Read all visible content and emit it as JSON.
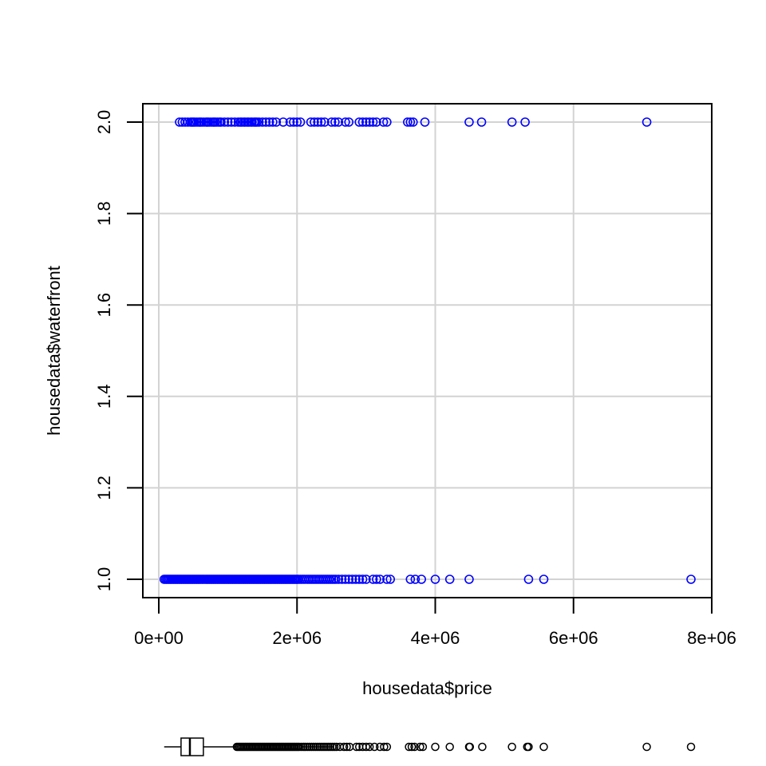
{
  "chart_data": {
    "type": "scatter",
    "title": "",
    "xlabel": "housedata$price",
    "ylabel": "housedata$waterfront",
    "xlim": [
      0,
      8000000
    ],
    "ylim": [
      1.0,
      2.0
    ],
    "grid": true,
    "x_ticks": [
      0,
      2000000,
      4000000,
      6000000,
      8000000
    ],
    "x_tick_labels": [
      "0e+00",
      "2e+06",
      "4e+06",
      "6e+06",
      "8e+06"
    ],
    "y_ticks": [
      1.0,
      1.2,
      1.4,
      1.6,
      1.8,
      2.0
    ],
    "y_tick_labels": [
      "1.0",
      "1.2",
      "1.4",
      "1.6",
      "1.8",
      "2.0"
    ],
    "colors": {
      "points": "#0000ff",
      "grid": "#d3d3d3",
      "axis": "#000000",
      "boxplot": "#000000"
    },
    "series": [
      {
        "y": 2.0,
        "x": [
          300000,
          340000,
          380000,
          420000,
          460000,
          480000,
          500000,
          520000,
          550000,
          580000,
          600000,
          620000,
          650000,
          680000,
          700000,
          720000,
          750000,
          780000,
          800000,
          820000,
          850000,
          880000,
          900000,
          950000,
          1000000,
          1050000,
          1100000,
          1150000,
          1180000,
          1200000,
          1230000,
          1250000,
          1280000,
          1300000,
          1330000,
          1350000,
          1380000,
          1400000,
          1420000,
          1450000,
          1500000,
          1550000,
          1600000,
          1650000,
          1700000,
          1800000,
          1900000,
          1950000,
          2000000,
          2050000,
          2200000,
          2250000,
          2300000,
          2350000,
          2400000,
          2500000,
          2550000,
          2600000,
          2700000,
          2750000,
          2900000,
          2950000,
          3000000,
          3050000,
          3100000,
          3150000,
          3250000,
          3300000,
          3600000,
          3640000,
          3680000,
          3850000,
          4490000,
          4670000,
          5110000,
          5300000,
          7060000
        ]
      },
      {
        "y": 1.0,
        "x": [
          78000,
          100000,
          120000,
          140000,
          160000,
          180000,
          200000,
          220000,
          240000,
          260000,
          280000,
          300000,
          320000,
          340000,
          360000,
          380000,
          400000,
          420000,
          440000,
          460000,
          480000,
          500000,
          520000,
          540000,
          560000,
          580000,
          600000,
          620000,
          640000,
          660000,
          680000,
          700000,
          720000,
          740000,
          760000,
          780000,
          800000,
          820000,
          840000,
          860000,
          880000,
          900000,
          920000,
          940000,
          960000,
          980000,
          1000000,
          1020000,
          1040000,
          1060000,
          1080000,
          1100000,
          1120000,
          1140000,
          1160000,
          1180000,
          1200000,
          1220000,
          1240000,
          1260000,
          1280000,
          1300000,
          1320000,
          1340000,
          1360000,
          1380000,
          1400000,
          1420000,
          1440000,
          1460000,
          1480000,
          1500000,
          1520000,
          1540000,
          1560000,
          1580000,
          1600000,
          1620000,
          1640000,
          1660000,
          1680000,
          1700000,
          1720000,
          1740000,
          1760000,
          1780000,
          1800000,
          1820000,
          1840000,
          1860000,
          1880000,
          1900000,
          1920000,
          1940000,
          1960000,
          1980000,
          2000000,
          2020000,
          2050000,
          2080000,
          2110000,
          2140000,
          2170000,
          2200000,
          2230000,
          2260000,
          2290000,
          2320000,
          2350000,
          2380000,
          2410000,
          2440000,
          2470000,
          2500000,
          2530000,
          2560000,
          2600000,
          2650000,
          2700000,
          2750000,
          2800000,
          2850000,
          2900000,
          2950000,
          3000000,
          3100000,
          3150000,
          3200000,
          3300000,
          3350000,
          3640000,
          3710000,
          3800000,
          4000000,
          4210000,
          4490000,
          5350000,
          5570000,
          7700000
        ]
      }
    ],
    "boxplot": {
      "q1": 322000,
      "median": 450000,
      "q3": 645000,
      "whisker_low": 78000,
      "whisker_high": 1130000,
      "outliers": [
        1130000,
        1150000,
        1170000,
        1190000,
        1210000,
        1230000,
        1250000,
        1270000,
        1290000,
        1310000,
        1330000,
        1350000,
        1370000,
        1390000,
        1410000,
        1430000,
        1450000,
        1470000,
        1490000,
        1510000,
        1530000,
        1550000,
        1570000,
        1590000,
        1610000,
        1630000,
        1650000,
        1670000,
        1690000,
        1710000,
        1730000,
        1750000,
        1770000,
        1790000,
        1810000,
        1830000,
        1850000,
        1870000,
        1890000,
        1910000,
        1930000,
        1950000,
        1970000,
        1990000,
        2010000,
        2030000,
        2060000,
        2090000,
        2120000,
        2150000,
        2180000,
        2210000,
        2240000,
        2270000,
        2300000,
        2330000,
        2360000,
        2390000,
        2420000,
        2450000,
        2480000,
        2510000,
        2540000,
        2570000,
        2620000,
        2680000,
        2720000,
        2760000,
        2860000,
        2900000,
        2950000,
        3000000,
        3050000,
        3120000,
        3200000,
        3260000,
        3300000,
        3620000,
        3660000,
        3700000,
        3780000,
        3820000,
        4000000,
        4210000,
        4490000,
        4500000,
        4680000,
        5110000,
        5330000,
        5350000,
        5570000,
        7060000,
        7700000
      ]
    }
  }
}
